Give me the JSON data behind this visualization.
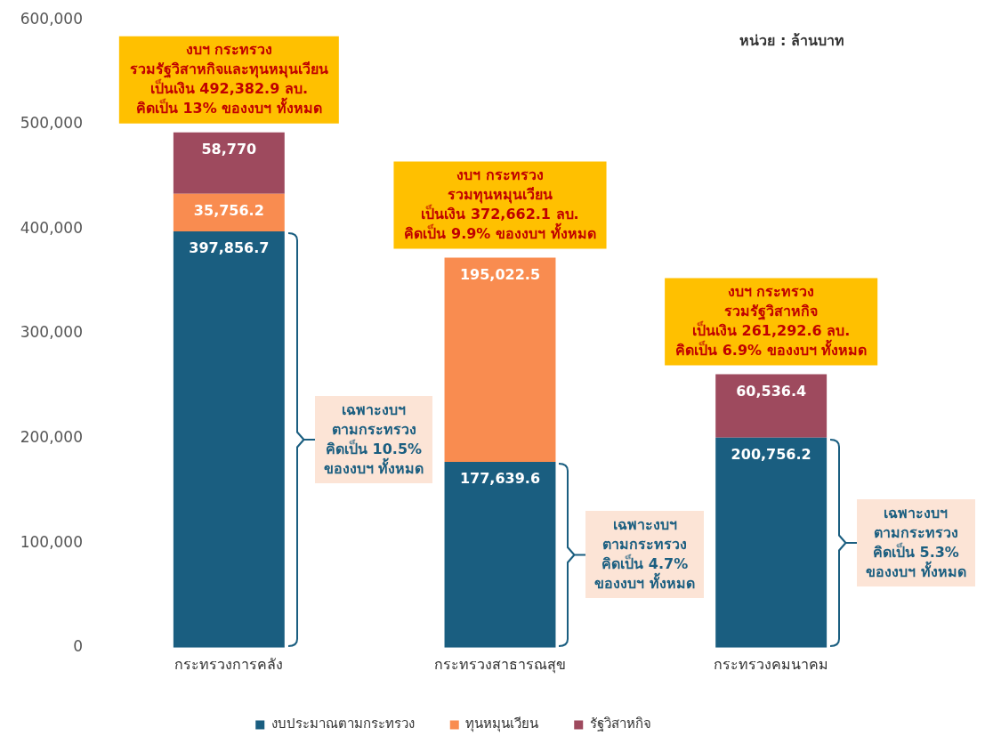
{
  "chart_data": {
    "type": "bar",
    "stacked": true,
    "categories": [
      "กระทรวงการคลัง",
      "กระทรวงสาธารณสุข",
      "กระทรวงคมนาคม"
    ],
    "series": [
      {
        "name": "งบประมาณตามกระทรวง",
        "color": "#1a5e80",
        "values": [
          397856.7,
          177639.6,
          200756.2
        ]
      },
      {
        "name": "ทุนหมุนเวียน",
        "color": "#f98c50",
        "values": [
          35756.2,
          195022.5,
          null
        ]
      },
      {
        "name": "รัฐวิสาหกิจ",
        "color": "#9e4a5e",
        "values": [
          58770,
          null,
          60536.4
        ]
      }
    ],
    "ylim": [
      0,
      600000
    ],
    "yticks": [
      {
        "value": 0,
        "label": "0"
      },
      {
        "value": 100000,
        "label": "100,000"
      },
      {
        "value": 200000,
        "label": "200,000"
      },
      {
        "value": 300000,
        "label": "300,000"
      },
      {
        "value": 400000,
        "label": "400,000"
      },
      {
        "value": 500000,
        "label": "500,000"
      },
      {
        "value": 600000,
        "label": "600,000"
      }
    ],
    "grid": false,
    "legend": "bottom",
    "value_labels": [
      [
        "397,856.7",
        "177,639.6",
        "200,756.2"
      ],
      [
        "35,756.2",
        "195,022.5",
        null
      ],
      [
        "58,770",
        null,
        "60,536.4"
      ]
    ],
    "annotations": [
      "หน่วย : ล้านบาท",
      {
        "text": "งบฯ กระทรวง\nรวมรัฐวิสาหกิจและทุนหมุนเวียน\nเป็นเงิน 492,382.9 ลบ.\nคิดเป็น 13% ของงบฯ ทั้งหมด",
        "x": "กระทรวงการคลัง",
        "y": 492382.9
      },
      {
        "text": "งบฯ กระทรวง\nรวมทุนหมุนเวียน\nเป็นเงิน 372,662.1 ลบ.\nคิดเป็น 9.9% ของงบฯ ทั้งหมด",
        "x": "กระทรวงสาธารณสุข",
        "y": 372662.1
      },
      {
        "text": "งบฯ กระทรวง\nรวมรัฐวิสาหกิจ\nเป็นเงิน 261,292.6 ลบ.\nคิดเป็น 6.9% ของงบฯ ทั้งหมด",
        "x": "กระทรวงคมนาคม",
        "y": 261292.6
      },
      "เฉพาะงบฯ\nตามกระทรวง\nคิดเป็น 10.5%\nของงบฯ ทั้งหมด",
      "เฉพาะงบฯ\nตามกระทรวง\nคิดเป็น 4.7%\nของงบฯ ทั้งหมด",
      "เฉพาะงบฯ\nตามกระทรวง\nคิดเป็น 5.3%\nของงบฯ ทั้งหมด"
    ]
  }
}
